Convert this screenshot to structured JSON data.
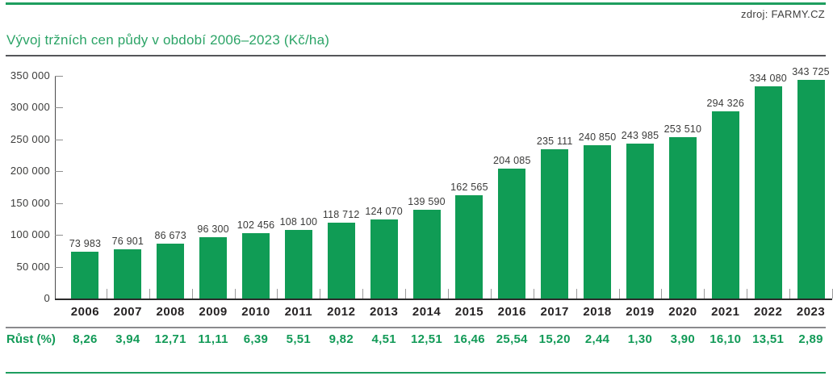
{
  "source": "zdroj: FARMY.CZ",
  "colors": {
    "bar_green": "#109c55",
    "accent_green": "#1e9e5f",
    "title_green": "#2ca467",
    "growth_green": "#129a57"
  },
  "chart_data": {
    "type": "bar",
    "title": "Vývoj tržních cen půdy v období 2006–2023 (Kč/ha)",
    "xlabel": "",
    "ylabel": "",
    "ylim": [
      0,
      350000
    ],
    "grid": false,
    "legend": false,
    "categories": [
      "2006",
      "2007",
      "2008",
      "2009",
      "2010",
      "2011",
      "2012",
      "2013",
      "2014",
      "2015",
      "2016",
      "2017",
      "2018",
      "2019",
      "2020",
      "2021",
      "2022",
      "2023"
    ],
    "values": [
      73983,
      76901,
      86673,
      96300,
      102456,
      108100,
      118712,
      124070,
      139590,
      162565,
      204085,
      235111,
      240850,
      243985,
      253510,
      294326,
      334080,
      343725
    ],
    "value_labels": [
      "73 983",
      "76 901",
      "86 673",
      "96 300",
      "102 456",
      "108 100",
      "118 712",
      "124 070",
      "139 590",
      "162 565",
      "204 085",
      "235 111",
      "240 850",
      "243 985",
      "253 510",
      "294 326",
      "334 080",
      "343 725"
    ],
    "yticks": [
      {
        "label": "0",
        "value": 0
      },
      {
        "label": "50 000",
        "value": 50000
      },
      {
        "label": "100 000",
        "value": 100000
      },
      {
        "label": "150 000",
        "value": 150000
      },
      {
        "label": "200 000",
        "value": 200000
      },
      {
        "label": "250 000",
        "value": 250000
      },
      {
        "label": "300 000",
        "value": 300000
      },
      {
        "label": "350 000",
        "value": 350000
      }
    ],
    "growth_row": {
      "label": "Růst (%)",
      "values": [
        "8,26",
        "3,94",
        "12,71",
        "11,11",
        "6,39",
        "5,51",
        "9,82",
        "4,51",
        "12,51",
        "16,46",
        "25,54",
        "15,20",
        "2,44",
        "1,30",
        "3,90",
        "16,10",
        "13,51",
        "2,89"
      ]
    }
  }
}
